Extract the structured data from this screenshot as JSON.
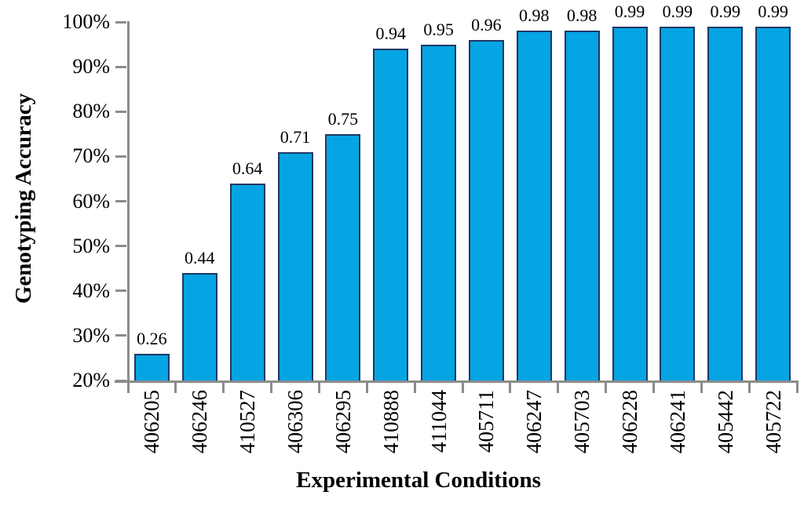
{
  "chart_data": {
    "type": "bar",
    "title": "",
    "xlabel": "Experimental Conditions",
    "ylabel": "Genotyping Accuracy",
    "categories": [
      "406205",
      "406246",
      "410527",
      "406306",
      "406295",
      "410888",
      "411044",
      "405711",
      "406247",
      "405703",
      "406228",
      "406241",
      "405442",
      "405722"
    ],
    "values": [
      0.26,
      0.44,
      0.64,
      0.71,
      0.75,
      0.94,
      0.95,
      0.96,
      0.98,
      0.98,
      0.99,
      0.99,
      0.99,
      0.99
    ],
    "value_labels": [
      "0.26",
      "0.44",
      "0.64",
      "0.71",
      "0.75",
      "0.94",
      "0.95",
      "0.96",
      "0.98",
      "0.98",
      "0.99",
      "0.99",
      "0.99",
      "0.99"
    ],
    "y_ticks": [
      "20%",
      "30%",
      "40%",
      "50%",
      "60%",
      "70%",
      "80%",
      "90%",
      "100%"
    ],
    "ylim": [
      0.2,
      1.0
    ],
    "grid": false,
    "legend": null,
    "bar_fill": "#05A4E2",
    "bar_border": "#1F3864",
    "axis_color": "#8C8C8C",
    "text_color": "#000000"
  }
}
